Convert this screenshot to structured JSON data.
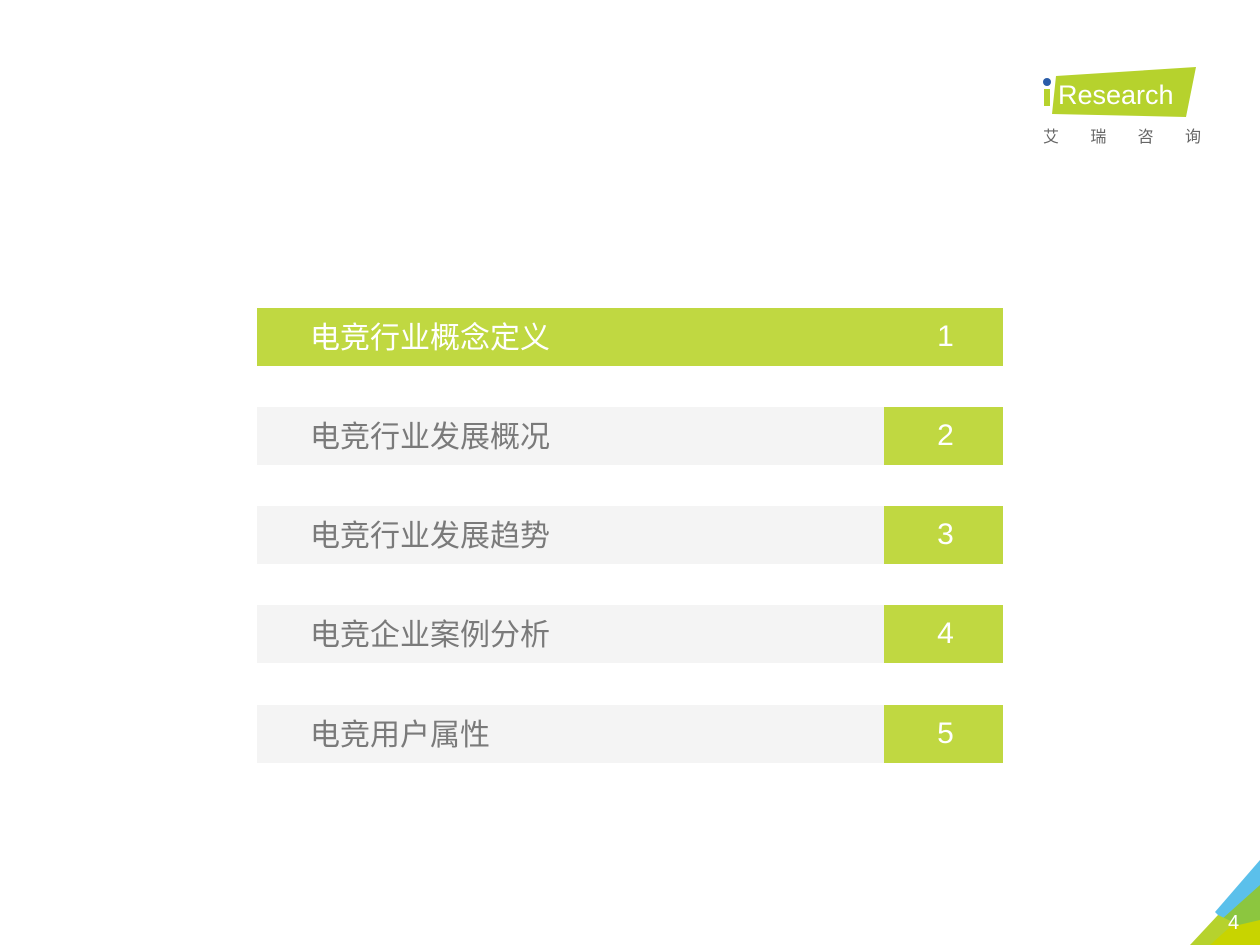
{
  "logo": {
    "text": "iResearch",
    "cn": [
      "艾",
      "瑞",
      "咨",
      "询"
    ],
    "color": "#b6d22d",
    "dot_color": "#2a5ca8"
  },
  "toc": {
    "items": [
      {
        "label": "电竞行业概念定义",
        "number": "1",
        "active": true
      },
      {
        "label": "电竞行业发展概况",
        "number": "2",
        "active": false
      },
      {
        "label": "电竞行业发展趋势",
        "number": "3",
        "active": false
      },
      {
        "label": "电竞企业案例分析",
        "number": "4",
        "active": false
      },
      {
        "label": "电竞用户属性",
        "number": "5",
        "active": false
      }
    ]
  },
  "colors": {
    "accent": "#c0d841",
    "row_bg": "#f4f4f4",
    "text": "#7a7a7a",
    "corner_blue": "#5bc0eb"
  },
  "page_number": "4"
}
